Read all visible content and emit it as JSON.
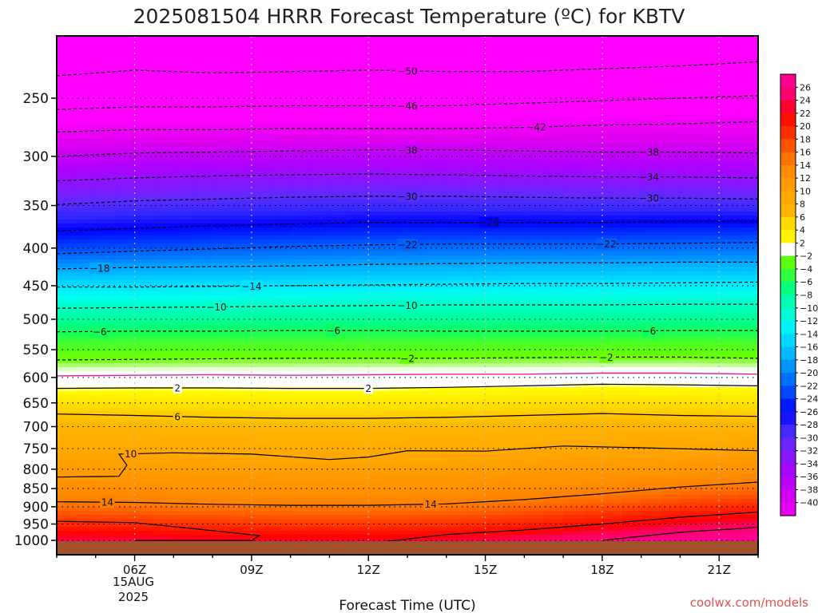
{
  "chart_data": {
    "type": "heatmap",
    "title": "2025081504 HRRR Forecast Temperature (ºC) for KBTV",
    "xlabel": "Forecast Time (UTC)",
    "ylabel": "",
    "credit": "coolwx.com/models",
    "x_ticks": [
      {
        "label": "06Z",
        "hour": 6
      },
      {
        "label": "09Z",
        "hour": 9
      },
      {
        "label": "12Z",
        "hour": 12
      },
      {
        "label": "15Z",
        "hour": 15
      },
      {
        "label": "18Z",
        "hour": 18
      },
      {
        "label": "21Z",
        "hour": 21
      }
    ],
    "x_date_lines": [
      "15AUG",
      "2025"
    ],
    "xlim_hours": [
      4,
      22
    ],
    "y_ticks": [
      250,
      300,
      350,
      400,
      450,
      500,
      550,
      600,
      650,
      700,
      750,
      800,
      850,
      900,
      950,
      1000
    ],
    "ylim_hpa": [
      200,
      1013
    ],
    "y_log_pressure": true,
    "colorbar_levels": [
      26,
      24,
      22,
      20,
      18,
      16,
      14,
      12,
      10,
      8,
      6,
      4,
      2,
      -2,
      -4,
      -6,
      -8,
      -10,
      -12,
      -14,
      -16,
      -18,
      -20,
      -22,
      -24,
      -26,
      -28,
      -30,
      -32,
      -34,
      -36,
      -38,
      -40
    ],
    "isotherms": [
      {
        "temp": -50,
        "label_hour": 13,
        "points": [
          [
            4,
            233
          ],
          [
            6,
            229
          ],
          [
            8,
            231
          ],
          [
            10,
            230
          ],
          [
            12,
            229
          ],
          [
            14,
            230
          ],
          [
            16,
            230
          ],
          [
            18,
            228
          ],
          [
            20,
            226
          ],
          [
            22,
            223
          ]
        ]
      },
      {
        "temp": -46,
        "label_hour": 13,
        "points": [
          [
            4,
            259
          ],
          [
            6,
            257
          ],
          [
            8,
            257
          ],
          [
            10,
            256
          ],
          [
            12,
            256
          ],
          [
            14,
            256
          ],
          [
            16,
            254
          ],
          [
            18,
            252
          ],
          [
            20,
            250
          ],
          [
            22,
            248
          ]
        ]
      },
      {
        "temp": -42,
        "label_hour": 16.3,
        "points": [
          [
            4,
            278
          ],
          [
            6,
            276
          ],
          [
            8,
            276
          ],
          [
            10,
            275
          ],
          [
            12,
            275
          ],
          [
            14,
            275
          ],
          [
            16,
            274
          ],
          [
            18,
            272
          ],
          [
            20,
            271
          ],
          [
            22,
            269
          ]
        ]
      },
      {
        "temp": -38,
        "label_hour": 13,
        "points": [
          [
            4,
            300
          ],
          [
            6,
            297
          ],
          [
            8,
            296
          ],
          [
            10,
            295
          ],
          [
            12,
            294
          ],
          [
            14,
            294
          ],
          [
            16,
            295
          ],
          [
            18,
            296
          ],
          [
            20,
            296
          ],
          [
            22,
            297
          ]
        ]
      },
      {
        "temp": -38,
        "label_hour": 19.2,
        "points": []
      },
      {
        "temp": -34,
        "label_hour": 19.2,
        "points": [
          [
            4,
            324
          ],
          [
            6,
            321
          ],
          [
            8,
            319
          ],
          [
            10,
            318
          ],
          [
            12,
            317
          ],
          [
            14,
            318
          ],
          [
            16,
            319
          ],
          [
            18,
            320
          ],
          [
            20,
            320
          ],
          [
            22,
            321
          ]
        ]
      },
      {
        "temp": -30,
        "label_hour": 13,
        "points": [
          [
            4,
            349
          ],
          [
            6,
            345
          ],
          [
            8,
            343
          ],
          [
            10,
            341
          ],
          [
            12,
            340
          ],
          [
            14,
            340
          ],
          [
            16,
            341
          ],
          [
            18,
            342
          ],
          [
            20,
            342
          ],
          [
            22,
            343
          ]
        ]
      },
      {
        "temp": -30,
        "label_hour": 19.2,
        "points": []
      },
      {
        "temp": -26,
        "label_hour": 15.1,
        "points": [
          [
            4,
            379
          ],
          [
            6,
            376
          ],
          [
            8,
            373
          ],
          [
            10,
            371
          ],
          [
            12,
            369
          ],
          [
            14,
            369
          ],
          [
            16,
            369
          ],
          [
            18,
            369
          ],
          [
            20,
            368
          ],
          [
            22,
            368
          ]
        ]
      },
      {
        "temp": -22,
        "label_hour": 13,
        "points": [
          [
            4,
            407
          ],
          [
            6,
            404
          ],
          [
            8,
            401
          ],
          [
            10,
            398
          ],
          [
            12,
            396
          ],
          [
            14,
            395
          ],
          [
            16,
            395
          ],
          [
            18,
            395
          ],
          [
            20,
            394
          ],
          [
            22,
            393
          ]
        ]
      },
      {
        "temp": -22,
        "label_hour": 18.1,
        "points": []
      },
      {
        "temp": -18,
        "label_hour": 5.1,
        "points": [
          [
            4,
            427
          ],
          [
            6,
            425
          ],
          [
            8,
            424
          ],
          [
            10,
            423
          ],
          [
            12,
            421
          ],
          [
            14,
            420
          ],
          [
            16,
            419
          ],
          [
            18,
            419
          ],
          [
            20,
            418
          ],
          [
            22,
            418
          ]
        ]
      },
      {
        "temp": -14,
        "label_hour": 9,
        "points": [
          [
            4,
            452
          ],
          [
            6,
            452
          ],
          [
            8,
            451
          ],
          [
            10,
            450
          ],
          [
            12,
            449
          ],
          [
            14,
            448
          ],
          [
            16,
            447
          ],
          [
            18,
            447
          ],
          [
            20,
            446
          ],
          [
            22,
            445
          ]
        ]
      },
      {
        "temp": -10,
        "label_hour": 8.1,
        "points": [
          [
            4,
            483
          ],
          [
            6,
            482
          ],
          [
            8,
            481
          ],
          [
            10,
            480
          ],
          [
            12,
            479
          ],
          [
            14,
            478
          ],
          [
            16,
            478
          ],
          [
            18,
            478
          ],
          [
            20,
            477
          ],
          [
            22,
            477
          ]
        ]
      },
      {
        "temp": -10,
        "label_hour": 13,
        "points": []
      },
      {
        "temp": -6,
        "label_hour": 5.1,
        "points": [
          [
            4,
            520
          ],
          [
            6,
            519
          ],
          [
            8,
            519
          ],
          [
            10,
            518
          ],
          [
            12,
            518
          ],
          [
            14,
            519
          ],
          [
            16,
            519
          ],
          [
            18,
            519
          ],
          [
            20,
            518
          ],
          [
            22,
            518
          ]
        ]
      },
      {
        "temp": -6,
        "label_hour": 11.1,
        "points": []
      },
      {
        "temp": -6,
        "label_hour": 19.2,
        "points": []
      },
      {
        "temp": -2,
        "label_hour": 13,
        "points": [
          [
            4,
            568
          ],
          [
            6,
            567
          ],
          [
            8,
            566
          ],
          [
            10,
            565
          ],
          [
            12,
            565
          ],
          [
            14,
            565
          ],
          [
            16,
            564
          ],
          [
            18,
            563
          ],
          [
            20,
            563
          ],
          [
            22,
            565
          ]
        ]
      },
      {
        "temp": -2,
        "label_hour": 18.1,
        "points": []
      },
      {
        "temp": 0,
        "label_hour": null,
        "points": [
          [
            4,
            597
          ],
          [
            6,
            596
          ],
          [
            8,
            595
          ],
          [
            10,
            596
          ],
          [
            12,
            595
          ],
          [
            14,
            594
          ],
          [
            16,
            594
          ],
          [
            18,
            592
          ],
          [
            20,
            592
          ],
          [
            22,
            594
          ]
        ]
      },
      {
        "temp": 2,
        "label_hour": 7.1,
        "points": [
          [
            4,
            621
          ],
          [
            6,
            620
          ],
          [
            8,
            620
          ],
          [
            10,
            621
          ],
          [
            12,
            621
          ],
          [
            14,
            619
          ],
          [
            16,
            616
          ],
          [
            18,
            613
          ],
          [
            20,
            614
          ],
          [
            22,
            616
          ]
        ]
      },
      {
        "temp": 2,
        "label_hour": 12,
        "points": []
      },
      {
        "temp": 6,
        "label_hour": 7.1,
        "points": [
          [
            4,
            673
          ],
          [
            6,
            676
          ],
          [
            8,
            680
          ],
          [
            10,
            682
          ],
          [
            12,
            682
          ],
          [
            14,
            680
          ],
          [
            16,
            676
          ],
          [
            18,
            672
          ],
          [
            20,
            676
          ],
          [
            22,
            678
          ]
        ]
      },
      {
        "temp": 10,
        "label_hour": 5.9,
        "points": [
          [
            4,
            820
          ],
          [
            5.6,
            818
          ],
          [
            5.8,
            790
          ],
          [
            5.6,
            763
          ],
          [
            7,
            760
          ],
          [
            9,
            763
          ],
          [
            11,
            776
          ],
          [
            12,
            770
          ],
          [
            13,
            755
          ],
          [
            15,
            756
          ],
          [
            17,
            744
          ],
          [
            19,
            748
          ],
          [
            22,
            755
          ]
        ]
      },
      {
        "temp": 14,
        "label_hour": 5.3,
        "points": [
          [
            4,
            886
          ],
          [
            6,
            888
          ],
          [
            8,
            893
          ],
          [
            10,
            896
          ],
          [
            12,
            896
          ],
          [
            14,
            892
          ],
          [
            16,
            880
          ],
          [
            18,
            864
          ],
          [
            20,
            846
          ],
          [
            22,
            833
          ]
        ]
      },
      {
        "temp": 14,
        "label_hour": 13.6,
        "points": []
      },
      {
        "temp": 18,
        "label_hour": null,
        "points": [
          [
            4,
            942
          ],
          [
            6,
            946
          ],
          [
            8,
            970
          ],
          [
            9.2,
            985
          ],
          [
            9,
            1000
          ],
          [
            6,
            1000
          ]
        ]
      },
      {
        "temp": 18,
        "label_hour": null,
        "points": [
          [
            12,
            1010
          ],
          [
            14,
            982
          ],
          [
            16,
            968
          ],
          [
            18,
            950
          ],
          [
            20,
            930
          ],
          [
            22,
            915
          ]
        ]
      },
      {
        "temp": 22,
        "label_hour": null,
        "points": [
          [
            18,
            1000
          ],
          [
            20,
            975
          ],
          [
            22,
            960
          ]
        ]
      }
    ]
  }
}
